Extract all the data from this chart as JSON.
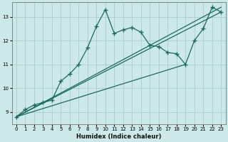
{
  "xlabel": "Humidex (Indice chaleur)",
  "bg_color": "#cce8e8",
  "grid_color": "#aacccc",
  "line_color": "#1a6b5a",
  "xlim": [
    -0.5,
    23.5
  ],
  "ylim": [
    8.5,
    13.6
  ],
  "yticks": [
    9,
    10,
    11,
    12,
    13
  ],
  "xticks": [
    0,
    1,
    2,
    3,
    4,
    5,
    6,
    7,
    8,
    9,
    10,
    11,
    12,
    13,
    14,
    15,
    16,
    17,
    18,
    19,
    20,
    21,
    22,
    23
  ],
  "line1_x": [
    0,
    1,
    2,
    3,
    4,
    5,
    6,
    7,
    8,
    9,
    10,
    11,
    12,
    13,
    14,
    15,
    16,
    17,
    18,
    19,
    20,
    21,
    22,
    23
  ],
  "line1_y": [
    8.8,
    9.1,
    9.3,
    9.4,
    9.5,
    10.3,
    10.6,
    11.0,
    11.7,
    12.6,
    13.3,
    12.3,
    12.45,
    12.55,
    12.35,
    11.8,
    11.75,
    11.5,
    11.45,
    11.0,
    12.0,
    12.5,
    13.4,
    13.2
  ],
  "line2_x": [
    0,
    23
  ],
  "line2_y": [
    8.8,
    13.4
  ],
  "line3_x": [
    0,
    23
  ],
  "line3_y": [
    8.8,
    13.2
  ],
  "line4_x": [
    0,
    19
  ],
  "line4_y": [
    8.8,
    11.0
  ]
}
